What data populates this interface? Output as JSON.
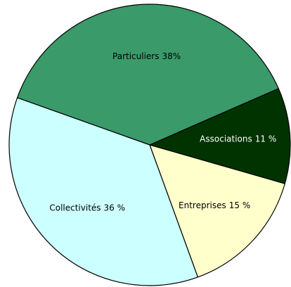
{
  "chart_data": {
    "type": "pie",
    "categories": [
      "Particuliers",
      "Associations",
      "Entreprises",
      "Collectivités"
    ],
    "values": [
      38,
      11,
      15,
      36
    ],
    "value_labels": [
      "38%",
      "11 %",
      "15 %",
      "36 %"
    ],
    "colors": [
      "#3a9a6a",
      "#003300",
      "#ffffcc",
      "#ccffff"
    ]
  }
}
